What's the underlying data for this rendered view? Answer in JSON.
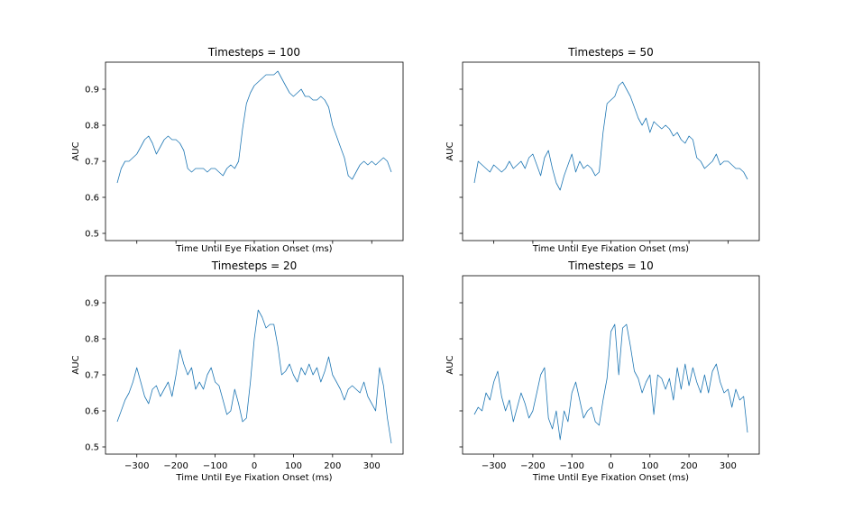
{
  "chart_data": [
    {
      "type": "line",
      "title": "Timesteps = 100",
      "xlabel": "Time Until Eye Fixation Onset (ms)",
      "ylabel": "AUC",
      "xlim": [
        -380,
        380
      ],
      "ylim": [
        0.48,
        0.975
      ],
      "xticks": [
        -300,
        -200,
        -100,
        0,
        100,
        200,
        300
      ],
      "yticks": [
        0.5,
        0.6,
        0.7,
        0.8,
        0.9
      ],
      "show_xticklabels": false,
      "show_yticklabels": true,
      "color": "#1f77b4",
      "series": [
        {
          "x": [
            -350,
            -340,
            -330,
            -320,
            -310,
            -300,
            -290,
            -280,
            -270,
            -260,
            -250,
            -240,
            -230,
            -220,
            -210,
            -200,
            -190,
            -180,
            -170,
            -160,
            -150,
            -140,
            -130,
            -120,
            -110,
            -100,
            -90,
            -80,
            -70,
            -60,
            -50,
            -40,
            -30,
            -20,
            -10,
            0,
            10,
            20,
            30,
            40,
            50,
            60,
            70,
            80,
            90,
            100,
            110,
            120,
            130,
            140,
            150,
            160,
            170,
            180,
            190,
            200,
            210,
            220,
            230,
            240,
            250,
            260,
            270,
            280,
            290,
            300,
            310,
            320,
            330,
            340,
            350
          ],
          "y": [
            0.64,
            0.68,
            0.7,
            0.7,
            0.71,
            0.72,
            0.74,
            0.76,
            0.77,
            0.75,
            0.72,
            0.74,
            0.76,
            0.77,
            0.76,
            0.76,
            0.75,
            0.73,
            0.68,
            0.67,
            0.68,
            0.68,
            0.68,
            0.67,
            0.68,
            0.68,
            0.67,
            0.66,
            0.68,
            0.69,
            0.68,
            0.7,
            0.79,
            0.86,
            0.89,
            0.91,
            0.92,
            0.93,
            0.94,
            0.94,
            0.94,
            0.95,
            0.93,
            0.91,
            0.89,
            0.88,
            0.89,
            0.9,
            0.88,
            0.88,
            0.87,
            0.87,
            0.88,
            0.87,
            0.85,
            0.8,
            0.77,
            0.74,
            0.71,
            0.66,
            0.65,
            0.67,
            0.69,
            0.7,
            0.69,
            0.7,
            0.69,
            0.7,
            0.71,
            0.7,
            0.67
          ]
        }
      ]
    },
    {
      "type": "line",
      "title": "Timesteps = 50",
      "xlabel": "Time Until Eye Fixation Onset (ms)",
      "ylabel": "AUC",
      "xlim": [
        -380,
        380
      ],
      "ylim": [
        0.48,
        0.975
      ],
      "xticks": [
        -300,
        -200,
        -100,
        0,
        100,
        200,
        300
      ],
      "yticks": [
        0.5,
        0.6,
        0.7,
        0.8,
        0.9
      ],
      "show_xticklabels": false,
      "show_yticklabels": false,
      "color": "#1f77b4",
      "series": [
        {
          "x": [
            -350,
            -340,
            -330,
            -320,
            -310,
            -300,
            -290,
            -280,
            -270,
            -260,
            -250,
            -240,
            -230,
            -220,
            -210,
            -200,
            -190,
            -180,
            -170,
            -160,
            -150,
            -140,
            -130,
            -120,
            -110,
            -100,
            -90,
            -80,
            -70,
            -60,
            -50,
            -40,
            -30,
            -20,
            -10,
            0,
            10,
            20,
            30,
            40,
            50,
            60,
            70,
            80,
            90,
            100,
            110,
            120,
            130,
            140,
            150,
            160,
            170,
            180,
            190,
            200,
            210,
            220,
            230,
            240,
            250,
            260,
            270,
            280,
            290,
            300,
            310,
            320,
            330,
            340,
            350
          ],
          "y": [
            0.64,
            0.7,
            0.69,
            0.68,
            0.67,
            0.69,
            0.68,
            0.67,
            0.68,
            0.7,
            0.68,
            0.69,
            0.7,
            0.68,
            0.71,
            0.72,
            0.69,
            0.66,
            0.71,
            0.73,
            0.68,
            0.64,
            0.62,
            0.66,
            0.69,
            0.72,
            0.67,
            0.7,
            0.68,
            0.69,
            0.68,
            0.66,
            0.67,
            0.78,
            0.86,
            0.87,
            0.88,
            0.91,
            0.92,
            0.9,
            0.88,
            0.85,
            0.82,
            0.8,
            0.82,
            0.78,
            0.81,
            0.8,
            0.79,
            0.8,
            0.79,
            0.77,
            0.78,
            0.76,
            0.75,
            0.77,
            0.76,
            0.71,
            0.7,
            0.68,
            0.69,
            0.7,
            0.72,
            0.69,
            0.7,
            0.7,
            0.69,
            0.68,
            0.68,
            0.67,
            0.65
          ]
        }
      ]
    },
    {
      "type": "line",
      "title": "Timesteps = 20",
      "xlabel": "Time Until Eye Fixation Onset (ms)",
      "ylabel": "AUC",
      "xlim": [
        -380,
        380
      ],
      "ylim": [
        0.48,
        0.975
      ],
      "xticks": [
        -300,
        -200,
        -100,
        0,
        100,
        200,
        300
      ],
      "yticks": [
        0.5,
        0.6,
        0.7,
        0.8,
        0.9
      ],
      "show_xticklabels": true,
      "show_yticklabels": true,
      "color": "#1f77b4",
      "series": [
        {
          "x": [
            -350,
            -340,
            -330,
            -320,
            -310,
            -300,
            -290,
            -280,
            -270,
            -260,
            -250,
            -240,
            -230,
            -220,
            -210,
            -200,
            -190,
            -180,
            -170,
            -160,
            -150,
            -140,
            -130,
            -120,
            -110,
            -100,
            -90,
            -80,
            -70,
            -60,
            -50,
            -40,
            -30,
            -20,
            -10,
            0,
            10,
            20,
            30,
            40,
            50,
            60,
            70,
            80,
            90,
            100,
            110,
            120,
            130,
            140,
            150,
            160,
            170,
            180,
            190,
            200,
            210,
            220,
            230,
            240,
            250,
            260,
            270,
            280,
            290,
            300,
            310,
            320,
            330,
            340,
            350
          ],
          "y": [
            0.57,
            0.6,
            0.63,
            0.65,
            0.68,
            0.72,
            0.68,
            0.64,
            0.62,
            0.66,
            0.67,
            0.64,
            0.66,
            0.68,
            0.64,
            0.7,
            0.77,
            0.73,
            0.7,
            0.72,
            0.66,
            0.68,
            0.66,
            0.7,
            0.72,
            0.68,
            0.67,
            0.63,
            0.59,
            0.6,
            0.66,
            0.62,
            0.57,
            0.58,
            0.68,
            0.8,
            0.88,
            0.86,
            0.83,
            0.84,
            0.84,
            0.78,
            0.7,
            0.71,
            0.73,
            0.7,
            0.68,
            0.72,
            0.7,
            0.73,
            0.7,
            0.72,
            0.68,
            0.71,
            0.75,
            0.7,
            0.68,
            0.66,
            0.63,
            0.66,
            0.67,
            0.66,
            0.65,
            0.68,
            0.64,
            0.62,
            0.6,
            0.72,
            0.67,
            0.58,
            0.51
          ]
        }
      ]
    },
    {
      "type": "line",
      "title": "Timesteps = 10",
      "xlabel": "Time Until Eye Fixation Onset (ms)",
      "ylabel": "AUC",
      "xlim": [
        -380,
        380
      ],
      "ylim": [
        0.48,
        0.975
      ],
      "xticks": [
        -300,
        -200,
        -100,
        0,
        100,
        200,
        300
      ],
      "yticks": [
        0.5,
        0.6,
        0.7,
        0.8,
        0.9
      ],
      "show_xticklabels": true,
      "show_yticklabels": false,
      "color": "#1f77b4",
      "series": [
        {
          "x": [
            -350,
            -340,
            -330,
            -320,
            -310,
            -300,
            -290,
            -280,
            -270,
            -260,
            -250,
            -240,
            -230,
            -220,
            -210,
            -200,
            -190,
            -180,
            -170,
            -160,
            -150,
            -140,
            -130,
            -120,
            -110,
            -100,
            -90,
            -80,
            -70,
            -60,
            -50,
            -40,
            -30,
            -20,
            -10,
            0,
            10,
            20,
            30,
            40,
            50,
            60,
            70,
            80,
            90,
            100,
            110,
            120,
            130,
            140,
            150,
            160,
            170,
            180,
            190,
            200,
            210,
            220,
            230,
            240,
            250,
            260,
            270,
            280,
            290,
            300,
            310,
            320,
            330,
            340,
            350
          ],
          "y": [
            0.59,
            0.61,
            0.6,
            0.65,
            0.63,
            0.68,
            0.71,
            0.64,
            0.6,
            0.63,
            0.57,
            0.61,
            0.65,
            0.62,
            0.58,
            0.6,
            0.65,
            0.7,
            0.72,
            0.58,
            0.55,
            0.6,
            0.52,
            0.6,
            0.57,
            0.65,
            0.68,
            0.63,
            0.58,
            0.6,
            0.61,
            0.57,
            0.56,
            0.63,
            0.69,
            0.82,
            0.84,
            0.7,
            0.83,
            0.84,
            0.78,
            0.71,
            0.69,
            0.65,
            0.68,
            0.7,
            0.59,
            0.7,
            0.69,
            0.66,
            0.69,
            0.63,
            0.72,
            0.66,
            0.73,
            0.67,
            0.72,
            0.68,
            0.65,
            0.7,
            0.65,
            0.71,
            0.73,
            0.68,
            0.65,
            0.66,
            0.61,
            0.66,
            0.63,
            0.64,
            0.54
          ]
        }
      ]
    }
  ]
}
